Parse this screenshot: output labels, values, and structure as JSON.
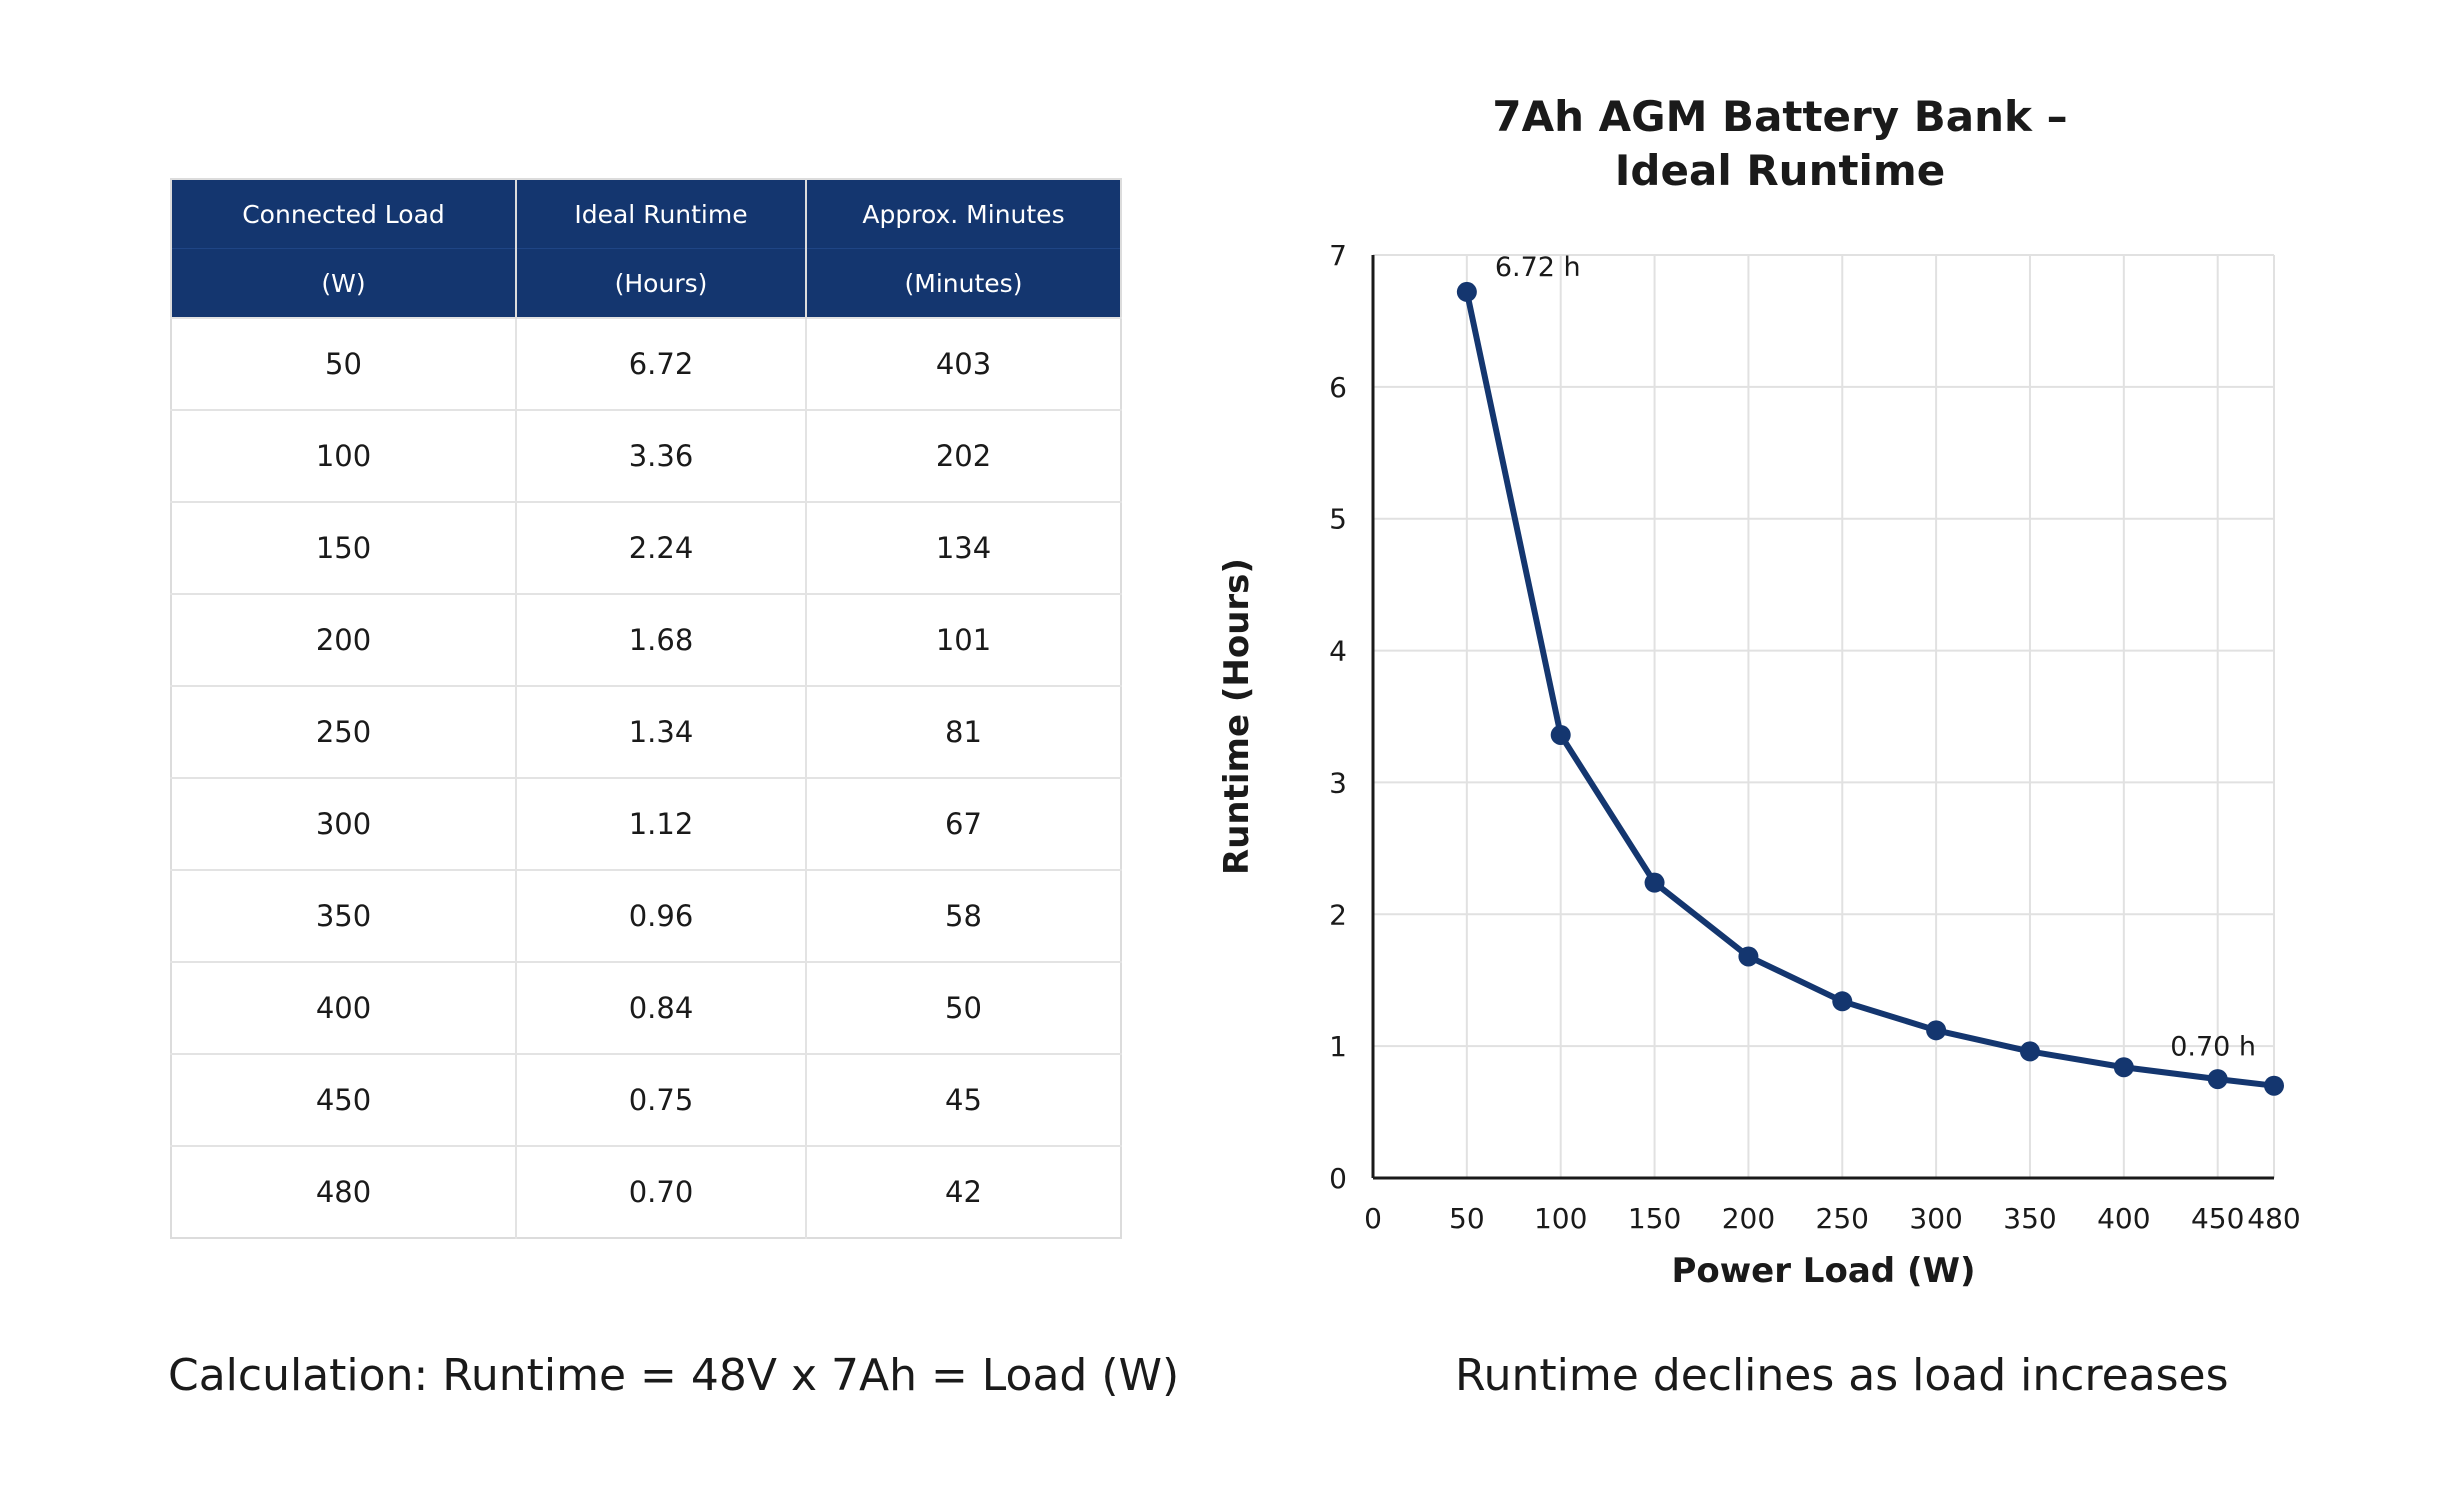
{
  "table": {
    "header_row1": [
      "Connected Load",
      "Ideal Runtime",
      "Approx. Minutes"
    ],
    "header_row2": [
      "(W)",
      "(Hours)",
      "(Minutes)"
    ],
    "rows": [
      [
        "50",
        "6.72",
        "403"
      ],
      [
        "100",
        "3.36",
        "202"
      ],
      [
        "150",
        "2.24",
        "134"
      ],
      [
        "200",
        "1.68",
        "101"
      ],
      [
        "250",
        "1.34",
        "81"
      ],
      [
        "300",
        "1.12",
        "67"
      ],
      [
        "350",
        "0.96",
        "58"
      ],
      [
        "400",
        "0.84",
        "50"
      ],
      [
        "450",
        "0.75",
        "45"
      ],
      [
        "480",
        "0.70",
        "42"
      ]
    ]
  },
  "captions": {
    "left": "Calculation: Runtime = 48V x 7Ah = Load (W)",
    "right": "Runtime declines as load increases"
  },
  "chart_data": {
    "type": "line",
    "title_line1": "7Ah AGM Battery Bank –",
    "title_line2": "Ideal Runtime",
    "xlabel": "Power Load (W)",
    "ylabel": "Runtime (Hours)",
    "x": [
      50,
      100,
      150,
      200,
      250,
      300,
      350,
      400,
      450,
      480
    ],
    "series": [
      {
        "values": [
          6.72,
          3.36,
          2.24,
          1.68,
          1.34,
          1.12,
          0.96,
          0.84,
          0.75,
          0.7
        ]
      }
    ],
    "xlim": [
      0,
      480
    ],
    "ylim": [
      0,
      7
    ],
    "xticks": [
      0,
      50,
      100,
      150,
      200,
      250,
      300,
      350,
      400,
      450,
      480
    ],
    "yticks": [
      0,
      1,
      2,
      3,
      4,
      5,
      6,
      7
    ],
    "grid": true,
    "annotations": [
      {
        "x": 50,
        "y": 6.72,
        "text": "6.72 h"
      },
      {
        "x": 480,
        "y": 0.7,
        "text": "0.70 h"
      }
    ],
    "line_color": "#14366f",
    "grid_color": "#e1e1e1"
  }
}
